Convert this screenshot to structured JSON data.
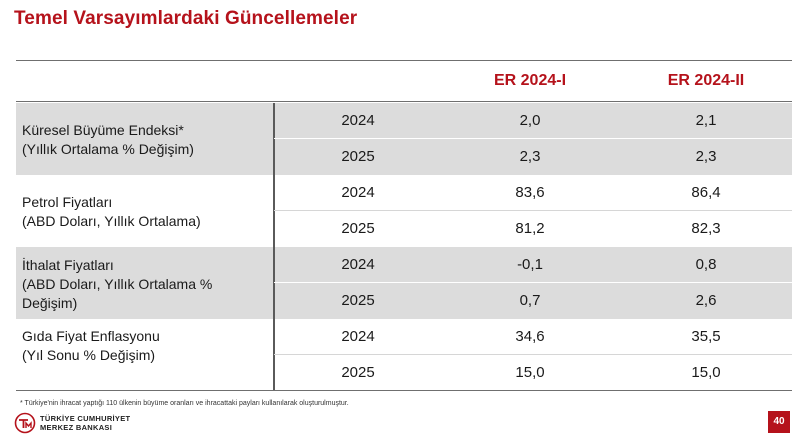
{
  "slide": {
    "title": "Temel Varsayımlardaki Güncellemeler",
    "page_number": "40",
    "footnote": "* Türkiye'nin ihracat yaptığı 110 ülkenin büyüme oranları ve ihracattaki payları kullanılarak oluşturulmuştur.",
    "logo_line1": "TÜRKİYE CUMHURİYET",
    "logo_line2": "MERKEZ BANKASI",
    "accent_color": "#b5121b",
    "shade_color": "#dcdcdc"
  },
  "table": {
    "columns": [
      "ER 2024-I",
      "ER 2024-II"
    ],
    "groups": [
      {
        "label_lines": [
          "Küresel Büyüme Endeksi*",
          "(Yıllık Ortalama % Değişim)"
        ],
        "shaded": true,
        "rows": [
          {
            "year": "2024",
            "v1": "2,0",
            "v2": "2,1"
          },
          {
            "year": "2025",
            "v1": "2,3",
            "v2": "2,3"
          }
        ]
      },
      {
        "label_lines": [
          "Petrol Fiyatları",
          "(ABD Doları, Yıllık Ortalama)"
        ],
        "shaded": false,
        "rows": [
          {
            "year": "2024",
            "v1": "83,6",
            "v2": "86,4"
          },
          {
            "year": "2025",
            "v1": "81,2",
            "v2": "82,3"
          }
        ]
      },
      {
        "label_lines": [
          "İthalat Fiyatları",
          "(ABD Doları, Yıllık Ortalama %",
          "Değişim)"
        ],
        "shaded": true,
        "rows": [
          {
            "year": "2024",
            "v1": "-0,1",
            "v2": "0,8"
          },
          {
            "year": "2025",
            "v1": "0,7",
            "v2": "2,6"
          }
        ]
      },
      {
        "label_lines": [
          "Gıda Fiyat Enflasyonu",
          "(Yıl Sonu % Değişim)"
        ],
        "shaded": false,
        "rows": [
          {
            "year": "2024",
            "v1": "34,6",
            "v2": "35,5"
          },
          {
            "year": "2025",
            "v1": "15,0",
            "v2": "15,0"
          }
        ]
      }
    ]
  }
}
